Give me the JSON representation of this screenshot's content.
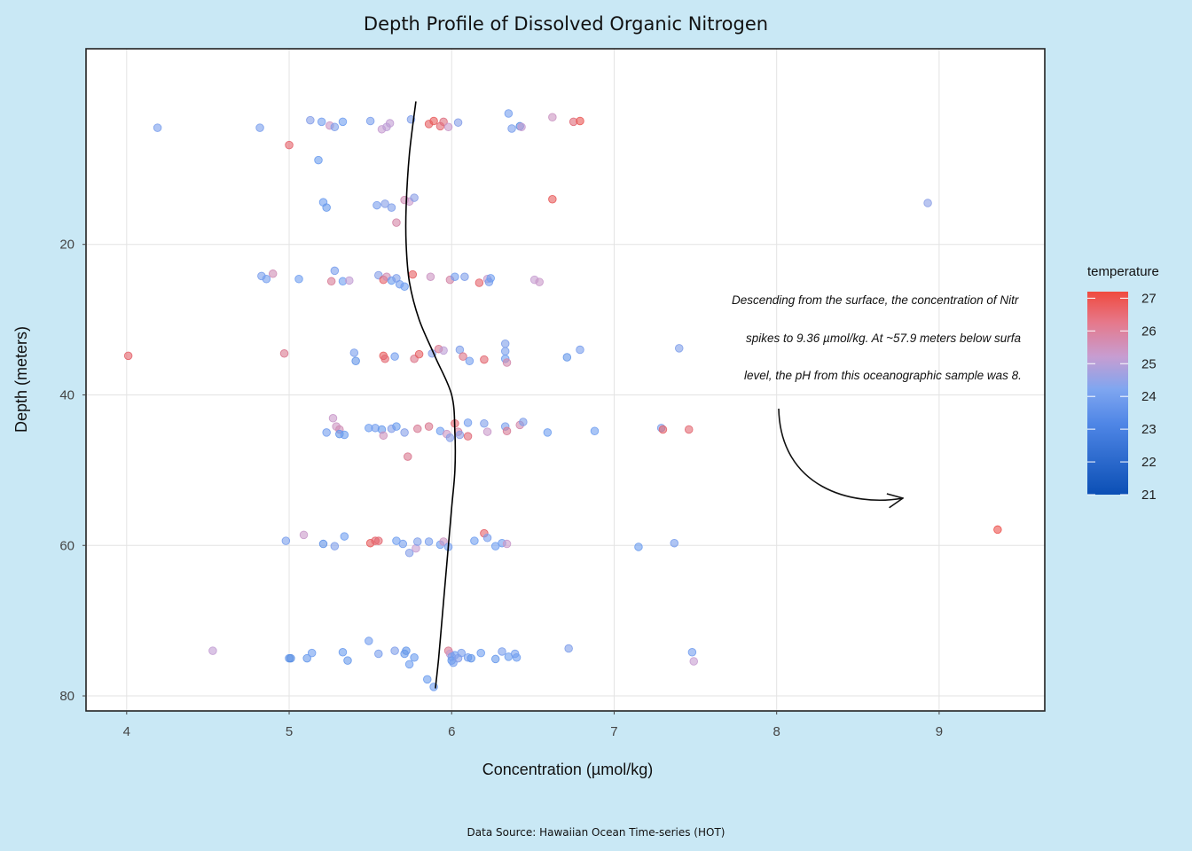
{
  "chart_data": {
    "type": "scatter",
    "title": "Depth Profile of Dissolved Organic Nitrogen",
    "xlabel": "Concentration (µmol/kg)",
    "ylabel": "Depth (meters)",
    "caption": "Data Source: Hawaiian Ocean Time-series (HOT)",
    "xlim": [
      3.75,
      9.65
    ],
    "ylim": [
      -6,
      82
    ],
    "y_reversed": true,
    "x_ticks": [
      4,
      5,
      6,
      7,
      8,
      9
    ],
    "y_ticks": [
      20,
      40,
      60,
      80
    ],
    "grid": true,
    "legend": {
      "title": "temperature",
      "position": "right",
      "ticks": [
        27,
        26,
        25,
        24,
        23,
        22,
        21
      ],
      "range": [
        21,
        27.2
      ],
      "colors": {
        "low": "#0b4fb5",
        "mid": "#6f9ff0",
        "upper": "#c79dd1",
        "high": "#f04a3e"
      }
    },
    "annotation": {
      "lines": [
        "Descending from the surface, the concentration of Nitr",
        "spikes to 9.36 µmol/kg. At ~57.9 meters below surfa",
        "level, the pH from this oceanographic sample was 8."
      ]
    },
    "smooth_line": [
      [
        5.78,
        1
      ],
      [
        5.74,
        8
      ],
      [
        5.72,
        15
      ],
      [
        5.72,
        20
      ],
      [
        5.74,
        25
      ],
      [
        5.8,
        30
      ],
      [
        5.9,
        35
      ],
      [
        6.0,
        40
      ],
      [
        6.02,
        45
      ],
      [
        6.02,
        50
      ],
      [
        6.0,
        55
      ],
      [
        5.98,
        60
      ],
      [
        5.96,
        65
      ],
      [
        5.94,
        70
      ],
      [
        5.92,
        75
      ],
      [
        5.9,
        79
      ]
    ],
    "points": [
      {
        "x": 4.19,
        "y": 4.5,
        "t": 23.8
      },
      {
        "x": 4.82,
        "y": 4.5,
        "t": 23.8
      },
      {
        "x": 5.13,
        "y": 3.5,
        "t": 24.0
      },
      {
        "x": 5.2,
        "y": 3.7,
        "t": 23.7
      },
      {
        "x": 5.25,
        "y": 4.2,
        "t": 25.4
      },
      {
        "x": 5.28,
        "y": 4.4,
        "t": 23.9
      },
      {
        "x": 5.33,
        "y": 3.7,
        "t": 23.6
      },
      {
        "x": 5.5,
        "y": 3.6,
        "t": 23.8
      },
      {
        "x": 5.57,
        "y": 4.7,
        "t": 25.2
      },
      {
        "x": 5.62,
        "y": 3.9,
        "t": 25.1
      },
      {
        "x": 5.6,
        "y": 4.4,
        "t": 25.0
      },
      {
        "x": 5.75,
        "y": 3.4,
        "t": 23.9
      },
      {
        "x": 5.86,
        "y": 4.0,
        "t": 26.7
      },
      {
        "x": 5.89,
        "y": 3.6,
        "t": 26.8
      },
      {
        "x": 5.93,
        "y": 4.3,
        "t": 26.5
      },
      {
        "x": 5.95,
        "y": 3.7,
        "t": 26.3
      },
      {
        "x": 5.98,
        "y": 4.4,
        "t": 25.3
      },
      {
        "x": 6.04,
        "y": 3.8,
        "t": 24.0
      },
      {
        "x": 6.35,
        "y": 2.6,
        "t": 23.7
      },
      {
        "x": 6.37,
        "y": 4.6,
        "t": 23.8
      },
      {
        "x": 6.42,
        "y": 4.3,
        "t": 22.9
      },
      {
        "x": 6.43,
        "y": 4.4,
        "t": 25.2
      },
      {
        "x": 6.62,
        "y": 3.1,
        "t": 25.4
      },
      {
        "x": 6.75,
        "y": 3.7,
        "t": 26.4
      },
      {
        "x": 6.79,
        "y": 3.6,
        "t": 26.9
      },
      {
        "x": 5.0,
        "y": 6.8,
        "t": 26.6
      },
      {
        "x": 5.18,
        "y": 8.8,
        "t": 23.5
      },
      {
        "x": 5.21,
        "y": 14.4,
        "t": 23.6
      },
      {
        "x": 5.23,
        "y": 15.1,
        "t": 23.4
      },
      {
        "x": 5.54,
        "y": 14.8,
        "t": 23.8
      },
      {
        "x": 5.59,
        "y": 14.6,
        "t": 24.0
      },
      {
        "x": 5.63,
        "y": 15.1,
        "t": 23.9
      },
      {
        "x": 5.71,
        "y": 14.1,
        "t": 25.6
      },
      {
        "x": 5.74,
        "y": 14.3,
        "t": 25.3
      },
      {
        "x": 5.77,
        "y": 13.8,
        "t": 24.1
      },
      {
        "x": 5.66,
        "y": 17.1,
        "t": 25.8
      },
      {
        "x": 6.62,
        "y": 14.0,
        "t": 26.8
      },
      {
        "x": 8.93,
        "y": 14.5,
        "t": 24.1
      },
      {
        "x": 4.83,
        "y": 24.2,
        "t": 23.8
      },
      {
        "x": 4.86,
        "y": 24.6,
        "t": 23.7
      },
      {
        "x": 4.9,
        "y": 23.9,
        "t": 25.6
      },
      {
        "x": 5.06,
        "y": 24.6,
        "t": 23.6
      },
      {
        "x": 5.26,
        "y": 24.9,
        "t": 26.0
      },
      {
        "x": 5.28,
        "y": 23.5,
        "t": 23.8
      },
      {
        "x": 5.33,
        "y": 24.9,
        "t": 23.6
      },
      {
        "x": 5.37,
        "y": 24.8,
        "t": 25.1
      },
      {
        "x": 5.55,
        "y": 24.1,
        "t": 24.0
      },
      {
        "x": 5.58,
        "y": 24.7,
        "t": 26.6
      },
      {
        "x": 5.6,
        "y": 24.3,
        "t": 25.6
      },
      {
        "x": 5.63,
        "y": 24.8,
        "t": 23.5
      },
      {
        "x": 5.66,
        "y": 24.5,
        "t": 23.9
      },
      {
        "x": 5.68,
        "y": 25.3,
        "t": 23.7
      },
      {
        "x": 5.71,
        "y": 25.6,
        "t": 23.6
      },
      {
        "x": 5.76,
        "y": 24.0,
        "t": 26.7
      },
      {
        "x": 5.87,
        "y": 24.3,
        "t": 25.4
      },
      {
        "x": 5.99,
        "y": 24.7,
        "t": 25.8
      },
      {
        "x": 6.02,
        "y": 24.3,
        "t": 23.7
      },
      {
        "x": 6.08,
        "y": 24.3,
        "t": 23.9
      },
      {
        "x": 6.17,
        "y": 25.1,
        "t": 26.6
      },
      {
        "x": 6.22,
        "y": 24.6,
        "t": 25.3
      },
      {
        "x": 6.23,
        "y": 25.0,
        "t": 23.8
      },
      {
        "x": 6.24,
        "y": 24.5,
        "t": 23.6
      },
      {
        "x": 6.51,
        "y": 24.7,
        "t": 25.2
      },
      {
        "x": 6.54,
        "y": 25.0,
        "t": 25.3
      },
      {
        "x": 4.01,
        "y": 34.8,
        "t": 26.6
      },
      {
        "x": 4.97,
        "y": 34.5,
        "t": 26.1
      },
      {
        "x": 5.4,
        "y": 34.4,
        "t": 23.8
      },
      {
        "x": 5.41,
        "y": 35.5,
        "t": 23.2
      },
      {
        "x": 5.58,
        "y": 34.8,
        "t": 26.8
      },
      {
        "x": 5.59,
        "y": 35.2,
        "t": 26.5
      },
      {
        "x": 5.65,
        "y": 34.9,
        "t": 23.7
      },
      {
        "x": 5.77,
        "y": 35.2,
        "t": 26.2
      },
      {
        "x": 5.8,
        "y": 34.6,
        "t": 26.7
      },
      {
        "x": 5.88,
        "y": 34.5,
        "t": 24.0
      },
      {
        "x": 5.92,
        "y": 33.9,
        "t": 26.1
      },
      {
        "x": 5.95,
        "y": 34.1,
        "t": 25.0
      },
      {
        "x": 6.05,
        "y": 34.0,
        "t": 23.9
      },
      {
        "x": 6.07,
        "y": 34.9,
        "t": 26.2
      },
      {
        "x": 6.11,
        "y": 35.5,
        "t": 23.7
      },
      {
        "x": 6.2,
        "y": 35.3,
        "t": 26.5
      },
      {
        "x": 6.33,
        "y": 33.2,
        "t": 23.9
      },
      {
        "x": 6.33,
        "y": 34.2,
        "t": 23.8
      },
      {
        "x": 6.33,
        "y": 35.2,
        "t": 23.6
      },
      {
        "x": 6.34,
        "y": 35.7,
        "t": 25.7
      },
      {
        "x": 6.71,
        "y": 35.0,
        "t": 23.3
      },
      {
        "x": 6.79,
        "y": 34.0,
        "t": 23.8
      },
      {
        "x": 7.4,
        "y": 33.8,
        "t": 23.9
      },
      {
        "x": 5.27,
        "y": 43.1,
        "t": 25.3
      },
      {
        "x": 5.23,
        "y": 45.0,
        "t": 23.7
      },
      {
        "x": 5.29,
        "y": 44.2,
        "t": 25.4
      },
      {
        "x": 5.31,
        "y": 44.6,
        "t": 25.6
      },
      {
        "x": 5.31,
        "y": 45.2,
        "t": 23.3
      },
      {
        "x": 5.34,
        "y": 45.3,
        "t": 23.5
      },
      {
        "x": 5.49,
        "y": 44.4,
        "t": 23.6
      },
      {
        "x": 5.53,
        "y": 44.4,
        "t": 23.7
      },
      {
        "x": 5.57,
        "y": 44.6,
        "t": 23.4
      },
      {
        "x": 5.58,
        "y": 45.4,
        "t": 25.5
      },
      {
        "x": 5.63,
        "y": 44.5,
        "t": 24.0
      },
      {
        "x": 5.66,
        "y": 44.2,
        "t": 23.5
      },
      {
        "x": 5.71,
        "y": 45.0,
        "t": 24.0
      },
      {
        "x": 5.73,
        "y": 48.2,
        "t": 26.1
      },
      {
        "x": 5.79,
        "y": 44.5,
        "t": 26.0
      },
      {
        "x": 5.86,
        "y": 44.2,
        "t": 26.1
      },
      {
        "x": 5.93,
        "y": 44.8,
        "t": 23.6
      },
      {
        "x": 5.97,
        "y": 45.2,
        "t": 25.4
      },
      {
        "x": 5.99,
        "y": 45.7,
        "t": 24.0
      },
      {
        "x": 6.02,
        "y": 43.8,
        "t": 26.5
      },
      {
        "x": 6.04,
        "y": 44.9,
        "t": 25.9
      },
      {
        "x": 6.05,
        "y": 45.3,
        "t": 24.1
      },
      {
        "x": 6.1,
        "y": 43.7,
        "t": 23.7
      },
      {
        "x": 6.1,
        "y": 45.5,
        "t": 26.4
      },
      {
        "x": 6.2,
        "y": 43.8,
        "t": 23.9
      },
      {
        "x": 6.22,
        "y": 44.9,
        "t": 25.3
      },
      {
        "x": 6.33,
        "y": 44.2,
        "t": 23.8
      },
      {
        "x": 6.34,
        "y": 44.8,
        "t": 26.0
      },
      {
        "x": 6.42,
        "y": 44.0,
        "t": 25.7
      },
      {
        "x": 6.44,
        "y": 43.6,
        "t": 23.9
      },
      {
        "x": 6.59,
        "y": 45.0,
        "t": 23.6
      },
      {
        "x": 6.88,
        "y": 44.8,
        "t": 23.6
      },
      {
        "x": 7.29,
        "y": 44.4,
        "t": 23.8
      },
      {
        "x": 7.3,
        "y": 44.6,
        "t": 26.6
      },
      {
        "x": 7.46,
        "y": 44.6,
        "t": 26.5
      },
      {
        "x": 4.98,
        "y": 59.4,
        "t": 23.8
      },
      {
        "x": 5.09,
        "y": 58.6,
        "t": 25.3
      },
      {
        "x": 5.21,
        "y": 59.8,
        "t": 23.2
      },
      {
        "x": 5.28,
        "y": 60.1,
        "t": 23.9
      },
      {
        "x": 5.34,
        "y": 58.8,
        "t": 23.6
      },
      {
        "x": 5.5,
        "y": 59.7,
        "t": 26.8
      },
      {
        "x": 5.53,
        "y": 59.4,
        "t": 26.6
      },
      {
        "x": 5.55,
        "y": 59.4,
        "t": 26.5
      },
      {
        "x": 5.66,
        "y": 59.4,
        "t": 23.6
      },
      {
        "x": 5.7,
        "y": 59.8,
        "t": 23.7
      },
      {
        "x": 5.74,
        "y": 61.0,
        "t": 24.0
      },
      {
        "x": 5.78,
        "y": 60.4,
        "t": 25.2
      },
      {
        "x": 5.79,
        "y": 59.5,
        "t": 23.9
      },
      {
        "x": 5.86,
        "y": 59.5,
        "t": 23.8
      },
      {
        "x": 5.93,
        "y": 59.9,
        "t": 23.6
      },
      {
        "x": 5.95,
        "y": 59.5,
        "t": 25.4
      },
      {
        "x": 5.98,
        "y": 60.2,
        "t": 23.7
      },
      {
        "x": 6.14,
        "y": 59.4,
        "t": 23.6
      },
      {
        "x": 6.2,
        "y": 58.4,
        "t": 26.6
      },
      {
        "x": 6.22,
        "y": 59.0,
        "t": 23.8
      },
      {
        "x": 6.27,
        "y": 60.1,
        "t": 23.6
      },
      {
        "x": 6.31,
        "y": 59.7,
        "t": 23.6
      },
      {
        "x": 6.34,
        "y": 59.8,
        "t": 25.3
      },
      {
        "x": 7.15,
        "y": 60.2,
        "t": 23.5
      },
      {
        "x": 7.37,
        "y": 59.7,
        "t": 23.8
      },
      {
        "x": 9.36,
        "y": 57.9,
        "t": 27.0
      },
      {
        "x": 4.53,
        "y": 74.0,
        "t": 25.1
      },
      {
        "x": 5.0,
        "y": 75.0,
        "t": 23.3
      },
      {
        "x": 5.01,
        "y": 75.0,
        "t": 23.0
      },
      {
        "x": 5.11,
        "y": 75.0,
        "t": 23.4
      },
      {
        "x": 5.14,
        "y": 74.3,
        "t": 23.6
      },
      {
        "x": 5.33,
        "y": 74.2,
        "t": 23.5
      },
      {
        "x": 5.36,
        "y": 75.3,
        "t": 23.4
      },
      {
        "x": 5.49,
        "y": 72.7,
        "t": 23.7
      },
      {
        "x": 5.55,
        "y": 74.4,
        "t": 23.8
      },
      {
        "x": 5.65,
        "y": 74.0,
        "t": 23.9
      },
      {
        "x": 5.71,
        "y": 74.4,
        "t": 23.4
      },
      {
        "x": 5.72,
        "y": 74.0,
        "t": 23.3
      },
      {
        "x": 5.74,
        "y": 75.8,
        "t": 23.6
      },
      {
        "x": 5.77,
        "y": 74.9,
        "t": 23.5
      },
      {
        "x": 5.85,
        "y": 77.8,
        "t": 23.5
      },
      {
        "x": 5.89,
        "y": 78.8,
        "t": 23.6
      },
      {
        "x": 5.98,
        "y": 74.0,
        "t": 26.1
      },
      {
        "x": 5.99,
        "y": 74.4,
        "t": 25.3
      },
      {
        "x": 6.0,
        "y": 74.8,
        "t": 23.9
      },
      {
        "x": 6.0,
        "y": 75.3,
        "t": 23.4
      },
      {
        "x": 6.01,
        "y": 75.6,
        "t": 23.7
      },
      {
        "x": 6.02,
        "y": 74.6,
        "t": 23.6
      },
      {
        "x": 6.04,
        "y": 75.0,
        "t": 24.0
      },
      {
        "x": 6.06,
        "y": 74.3,
        "t": 23.8
      },
      {
        "x": 6.1,
        "y": 74.9,
        "t": 23.7
      },
      {
        "x": 6.12,
        "y": 75.0,
        "t": 23.3
      },
      {
        "x": 6.18,
        "y": 74.3,
        "t": 23.6
      },
      {
        "x": 6.27,
        "y": 75.1,
        "t": 23.4
      },
      {
        "x": 6.31,
        "y": 74.1,
        "t": 23.8
      },
      {
        "x": 6.35,
        "y": 74.8,
        "t": 23.5
      },
      {
        "x": 6.39,
        "y": 74.4,
        "t": 23.7
      },
      {
        "x": 6.4,
        "y": 74.9,
        "t": 23.6
      },
      {
        "x": 6.72,
        "y": 73.7,
        "t": 23.9
      },
      {
        "x": 7.48,
        "y": 74.2,
        "t": 23.7
      },
      {
        "x": 7.49,
        "y": 75.4,
        "t": 25.2
      }
    ]
  }
}
